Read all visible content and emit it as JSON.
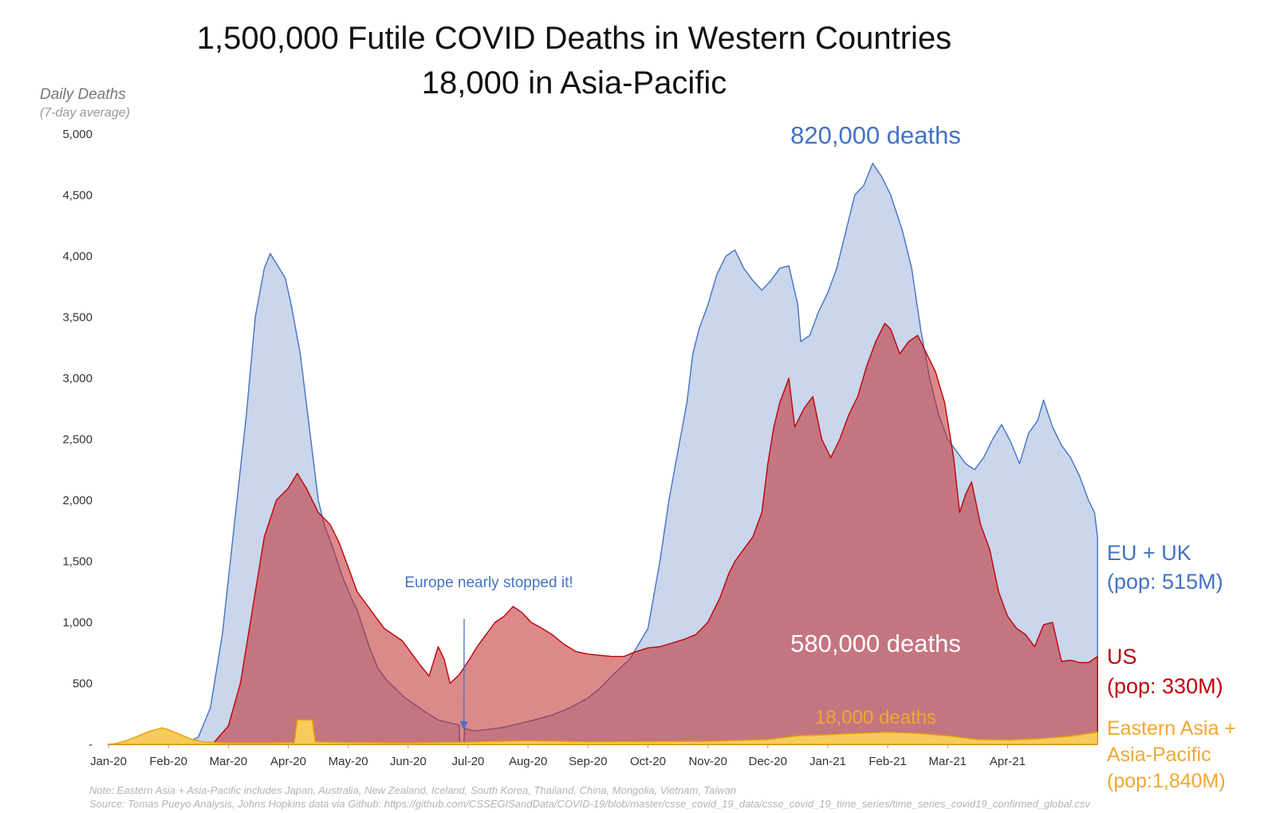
{
  "chart_data": {
    "type": "area",
    "title_line1": "1,500,000 Futile COVID Deaths in Western Countries",
    "title_line2": "18,000 in Asia-Pacific",
    "ylabel": "Daily Deaths",
    "ylabel_sub": "(7-day average)",
    "ylim": [
      0,
      5000
    ],
    "y_ticks": [
      "-",
      "500",
      "1,000",
      "1,500",
      "2,000",
      "2,500",
      "3,000",
      "3,500",
      "4,000",
      "4,500",
      "5,000"
    ],
    "x_ticks": [
      "Jan-20",
      "Feb-20",
      "Mar-20",
      "Apr-20",
      "May-20",
      "Jun-20",
      "Jul-20",
      "Aug-20",
      "Sep-20",
      "Oct-20",
      "Nov-20",
      "Dec-20",
      "Jan-21",
      "Feb-21",
      "Mar-21",
      "Apr-21"
    ],
    "x_unit": "months since Jan-20",
    "grid": false,
    "series": [
      {
        "name": "EU + UK",
        "legend_line1": "EU + UK",
        "legend_line2": "(pop: 515M)",
        "total_label": "820,000 deaths",
        "color": "#4472c4",
        "fill": "#c9d6ec",
        "points": [
          [
            0,
            0
          ],
          [
            1.0,
            0
          ],
          [
            1.3,
            10
          ],
          [
            1.5,
            60
          ],
          [
            1.7,
            300
          ],
          [
            1.9,
            900
          ],
          [
            2.1,
            1800
          ],
          [
            2.3,
            2700
          ],
          [
            2.45,
            3500
          ],
          [
            2.6,
            3900
          ],
          [
            2.7,
            4020
          ],
          [
            2.85,
            3900
          ],
          [
            2.95,
            3820
          ],
          [
            3.05,
            3600
          ],
          [
            3.2,
            3200
          ],
          [
            3.35,
            2600
          ],
          [
            3.5,
            2000
          ],
          [
            3.6,
            1800
          ],
          [
            3.75,
            1600
          ],
          [
            3.9,
            1380
          ],
          [
            4.05,
            1200
          ],
          [
            4.15,
            1100
          ],
          [
            4.25,
            950
          ],
          [
            4.35,
            800
          ],
          [
            4.5,
            620
          ],
          [
            4.65,
            520
          ],
          [
            4.8,
            450
          ],
          [
            4.95,
            380
          ],
          [
            5.1,
            330
          ],
          [
            5.3,
            260
          ],
          [
            5.5,
            200
          ],
          [
            5.75,
            170
          ],
          [
            5.85,
            160
          ],
          [
            5.86,
            10
          ],
          [
            5.93,
            10
          ],
          [
            5.94,
            130
          ],
          [
            6.1,
            110
          ],
          [
            6.3,
            120
          ],
          [
            6.6,
            140
          ],
          [
            6.85,
            170
          ],
          [
            7.1,
            200
          ],
          [
            7.4,
            240
          ],
          [
            7.7,
            300
          ],
          [
            8.0,
            380
          ],
          [
            8.2,
            460
          ],
          [
            8.4,
            560
          ],
          [
            8.7,
            700
          ],
          [
            9.0,
            950
          ],
          [
            9.2,
            1500
          ],
          [
            9.35,
            2000
          ],
          [
            9.5,
            2400
          ],
          [
            9.65,
            2800
          ],
          [
            9.75,
            3200
          ],
          [
            9.85,
            3400
          ],
          [
            10.0,
            3600
          ],
          [
            10.15,
            3850
          ],
          [
            10.3,
            4000
          ],
          [
            10.45,
            4050
          ],
          [
            10.6,
            3900
          ],
          [
            10.75,
            3800
          ],
          [
            10.9,
            3720
          ],
          [
            11.05,
            3800
          ],
          [
            11.2,
            3900
          ],
          [
            11.35,
            3920
          ],
          [
            11.5,
            3600
          ],
          [
            11.55,
            3300
          ],
          [
            11.7,
            3350
          ],
          [
            11.85,
            3550
          ],
          [
            12.0,
            3700
          ],
          [
            12.15,
            3900
          ],
          [
            12.3,
            4200
          ],
          [
            12.45,
            4500
          ],
          [
            12.6,
            4580
          ],
          [
            12.75,
            4760
          ],
          [
            12.9,
            4650
          ],
          [
            13.05,
            4500
          ],
          [
            13.25,
            4200
          ],
          [
            13.4,
            3900
          ],
          [
            13.55,
            3400
          ],
          [
            13.7,
            3000
          ],
          [
            13.85,
            2700
          ],
          [
            14.0,
            2500
          ],
          [
            14.15,
            2400
          ],
          [
            14.3,
            2300
          ],
          [
            14.45,
            2250
          ],
          [
            14.6,
            2350
          ],
          [
            14.75,
            2500
          ],
          [
            14.9,
            2620
          ],
          [
            15.05,
            2480
          ],
          [
            15.2,
            2300
          ],
          [
            15.35,
            2550
          ],
          [
            15.5,
            2650
          ],
          [
            15.6,
            2820
          ],
          [
            15.75,
            2600
          ],
          [
            15.9,
            2450
          ],
          [
            16.05,
            2350
          ],
          [
            16.2,
            2200
          ],
          [
            16.35,
            2000
          ],
          [
            16.45,
            1900
          ],
          [
            16.5,
            1700
          ],
          [
            16.5,
            0
          ]
        ]
      },
      {
        "name": "US",
        "legend_line1": "US",
        "legend_line2": "(pop: 330M)",
        "total_label": "580,000 deaths",
        "color": "#c0000a",
        "fill": "rgba(192,40,40,0.55)",
        "points": [
          [
            0,
            0
          ],
          [
            1.5,
            0
          ],
          [
            1.75,
            10
          ],
          [
            2.0,
            150
          ],
          [
            2.2,
            500
          ],
          [
            2.4,
            1100
          ],
          [
            2.6,
            1700
          ],
          [
            2.8,
            2000
          ],
          [
            3.0,
            2100
          ],
          [
            3.15,
            2220
          ],
          [
            3.3,
            2100
          ],
          [
            3.5,
            1900
          ],
          [
            3.7,
            1800
          ],
          [
            3.85,
            1650
          ],
          [
            4.0,
            1450
          ],
          [
            4.15,
            1250
          ],
          [
            4.3,
            1150
          ],
          [
            4.45,
            1050
          ],
          [
            4.6,
            950
          ],
          [
            4.75,
            900
          ],
          [
            4.9,
            850
          ],
          [
            5.05,
            750
          ],
          [
            5.2,
            650
          ],
          [
            5.35,
            560
          ],
          [
            5.5,
            800
          ],
          [
            5.6,
            700
          ],
          [
            5.7,
            500
          ],
          [
            5.85,
            570
          ],
          [
            6.0,
            680
          ],
          [
            6.15,
            800
          ],
          [
            6.3,
            900
          ],
          [
            6.45,
            1000
          ],
          [
            6.6,
            1050
          ],
          [
            6.75,
            1130
          ],
          [
            6.9,
            1080
          ],
          [
            7.05,
            1000
          ],
          [
            7.2,
            960
          ],
          [
            7.4,
            900
          ],
          [
            7.6,
            820
          ],
          [
            7.8,
            760
          ],
          [
            8.0,
            740
          ],
          [
            8.2,
            730
          ],
          [
            8.4,
            720
          ],
          [
            8.6,
            720
          ],
          [
            8.8,
            760
          ],
          [
            9.0,
            790
          ],
          [
            9.2,
            800
          ],
          [
            9.4,
            830
          ],
          [
            9.6,
            860
          ],
          [
            9.8,
            900
          ],
          [
            10.0,
            1000
          ],
          [
            10.2,
            1200
          ],
          [
            10.35,
            1400
          ],
          [
            10.45,
            1500
          ],
          [
            10.6,
            1600
          ],
          [
            10.75,
            1700
          ],
          [
            10.9,
            1900
          ],
          [
            11.0,
            2300
          ],
          [
            11.1,
            2600
          ],
          [
            11.2,
            2800
          ],
          [
            11.35,
            3000
          ],
          [
            11.45,
            2600
          ],
          [
            11.6,
            2750
          ],
          [
            11.75,
            2850
          ],
          [
            11.9,
            2500
          ],
          [
            12.05,
            2350
          ],
          [
            12.2,
            2500
          ],
          [
            12.35,
            2700
          ],
          [
            12.5,
            2850
          ],
          [
            12.65,
            3100
          ],
          [
            12.8,
            3300
          ],
          [
            12.95,
            3450
          ],
          [
            13.05,
            3400
          ],
          [
            13.2,
            3200
          ],
          [
            13.35,
            3300
          ],
          [
            13.5,
            3350
          ],
          [
            13.65,
            3200
          ],
          [
            13.8,
            3050
          ],
          [
            13.95,
            2800
          ],
          [
            14.1,
            2350
          ],
          [
            14.2,
            1900
          ],
          [
            14.3,
            2050
          ],
          [
            14.4,
            2150
          ],
          [
            14.55,
            1800
          ],
          [
            14.7,
            1600
          ],
          [
            14.85,
            1250
          ],
          [
            15.0,
            1050
          ],
          [
            15.15,
            950
          ],
          [
            15.3,
            900
          ],
          [
            15.45,
            800
          ],
          [
            15.6,
            980
          ],
          [
            15.75,
            1000
          ],
          [
            15.9,
            680
          ],
          [
            16.05,
            690
          ],
          [
            16.2,
            670
          ],
          [
            16.35,
            670
          ],
          [
            16.5,
            720
          ],
          [
            16.5,
            0
          ]
        ]
      },
      {
        "name": "Eastern Asia + Asia-Pacific",
        "legend_line1": "Eastern Asia +",
        "legend_line2": "Asia-Pacific",
        "legend_line3": "(pop:1,840M)",
        "total_label": "18,000 deaths",
        "color": "#e6a100",
        "fill": "#f6cc5c",
        "points": [
          [
            0,
            0
          ],
          [
            0.1,
            5
          ],
          [
            0.3,
            30
          ],
          [
            0.5,
            70
          ],
          [
            0.7,
            110
          ],
          [
            0.9,
            135
          ],
          [
            1.0,
            120
          ],
          [
            1.2,
            80
          ],
          [
            1.4,
            40
          ],
          [
            1.6,
            18
          ],
          [
            2.0,
            12
          ],
          [
            2.6,
            12
          ],
          [
            3.1,
            15
          ],
          [
            3.15,
            200
          ],
          [
            3.4,
            200
          ],
          [
            3.45,
            20
          ],
          [
            4.0,
            15
          ],
          [
            5.0,
            12
          ],
          [
            6.0,
            18
          ],
          [
            7.0,
            30
          ],
          [
            8.0,
            20
          ],
          [
            9.0,
            22
          ],
          [
            10.0,
            25
          ],
          [
            11.0,
            40
          ],
          [
            11.5,
            70
          ],
          [
            12.0,
            80
          ],
          [
            12.5,
            90
          ],
          [
            13.0,
            100
          ],
          [
            13.5,
            90
          ],
          [
            14.0,
            70
          ],
          [
            14.5,
            40
          ],
          [
            15.0,
            35
          ],
          [
            15.5,
            45
          ],
          [
            16.0,
            65
          ],
          [
            16.3,
            85
          ],
          [
            16.5,
            100
          ],
          [
            16.5,
            0
          ]
        ]
      }
    ],
    "annotation": "Europe nearly stopped it!",
    "annotation_arrow_target": [
      5.93,
      150
    ],
    "note": "Note: Eastern Asia + Asia-Pacific includes Japan, Australia, New Zealand, Iceland, South Korea, Thailand, China, Mongolia, Vietnam, Taiwan",
    "source": "Source: Tomas Pueyo Analysis, Johns Hopkins data via Github: https://github.com/CSSEGISandData/COVID-19/blob/master/csse_covid_19_data/csse_covid_19_time_series/time_series_covid19_confirmed_global.csv"
  }
}
